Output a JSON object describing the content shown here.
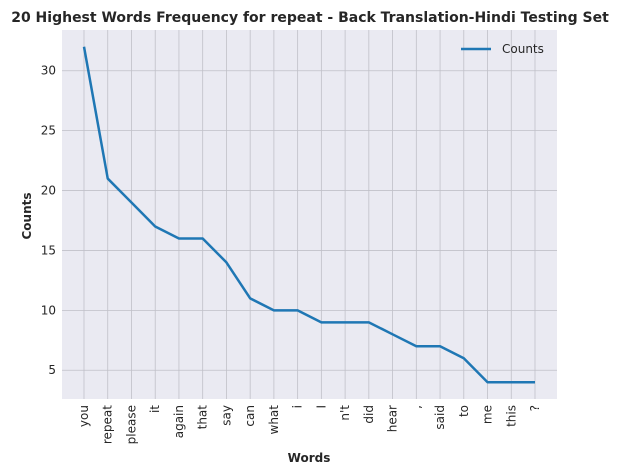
{
  "chart_data": {
    "type": "line",
    "title": "20 Highest Words Frequency for repeat - Back Translation-Hindi Testing Set",
    "xlabel": "Words",
    "ylabel": "Counts",
    "categories": [
      "you",
      "repeat",
      "please",
      "it",
      "again",
      "that",
      "say",
      "can",
      "what",
      "i",
      "I",
      "n't",
      "did",
      "hear",
      ",",
      "said",
      "to",
      "me",
      "this",
      "?"
    ],
    "series": [
      {
        "name": "Counts",
        "values": [
          32,
          21,
          19,
          17,
          16,
          16,
          14,
          11,
          10,
          10,
          9,
          9,
          9,
          8,
          7,
          7,
          6,
          4,
          4,
          4
        ],
        "color": "#1f77b4"
      }
    ],
    "ylim": [
      2.6,
      33.4
    ],
    "yticks": [
      5,
      10,
      15,
      20,
      25,
      30
    ],
    "grid": true,
    "legend_position": "top-right",
    "background": "#eaeaf2"
  }
}
